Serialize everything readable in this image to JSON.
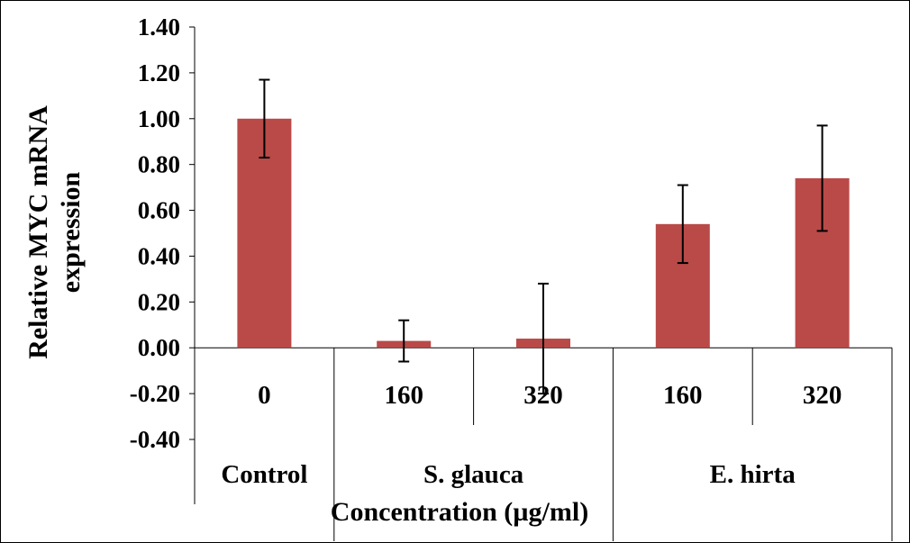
{
  "chart_data": {
    "type": "bar",
    "title": "",
    "ylabel_lines": [
      "Relative  MYC  mRNA",
      "expression"
    ],
    "xlabel": "Concentration   (µg/ml)",
    "ylim": [
      -0.4,
      1.4
    ],
    "yticks": [
      -0.4,
      -0.2,
      0.0,
      0.2,
      0.4,
      0.6,
      0.8,
      1.0,
      1.2,
      1.4
    ],
    "ytick_labels": [
      "-0.40",
      "-0.20",
      "0.00",
      "0.20",
      "0.40",
      "0.60",
      "0.80",
      "1.00",
      "1.20",
      "1.40"
    ],
    "categories": [
      "0",
      "160",
      "320",
      "160",
      "320"
    ],
    "groups": [
      {
        "label": "Control",
        "span": [
          0,
          0
        ]
      },
      {
        "label": "S. glauca",
        "span": [
          1,
          2
        ]
      },
      {
        "label": "E. hirta",
        "span": [
          3,
          4
        ]
      }
    ],
    "values": [
      1.0,
      0.03,
      0.04,
      0.54,
      0.74
    ],
    "errors": [
      0.17,
      0.09,
      0.24,
      0.17,
      0.23
    ],
    "bar_color": "#B94A48"
  }
}
